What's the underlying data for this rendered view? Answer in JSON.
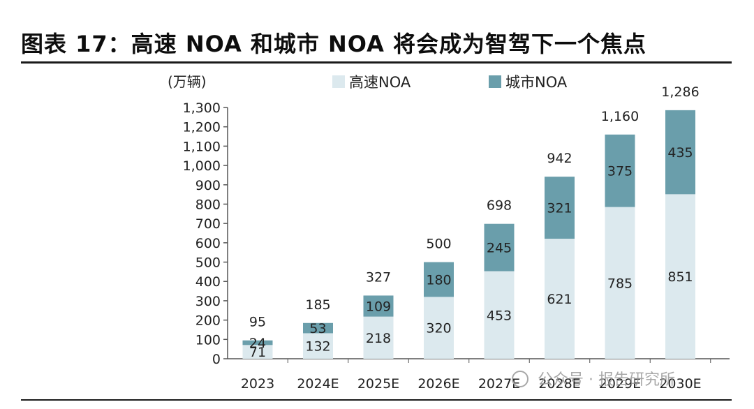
{
  "title": "图表 17：高速 NOA 和城市 NOA 将会成为智驾下一个焦点",
  "watermark": "公众号 · 报告研究所",
  "colors": {
    "highway": "#dce9ee",
    "city": "#6a9eab",
    "axis": "#555555"
  },
  "chart_data": {
    "type": "bar",
    "stacked": true,
    "unit_label": "(万辆)",
    "categories": [
      "2023",
      "2024E",
      "2025E",
      "2026E",
      "2027E",
      "2028E",
      "2029E",
      "2030E"
    ],
    "series": [
      {
        "name": "高速NOA",
        "values": [
          71,
          132,
          218,
          320,
          453,
          621,
          785,
          851
        ]
      },
      {
        "name": "城市NOA",
        "values": [
          24,
          53,
          109,
          180,
          245,
          321,
          375,
          435
        ]
      }
    ],
    "totals": [
      95,
      185,
      327,
      500,
      698,
      942,
      1160,
      1286
    ],
    "yticks": [
      "0",
      "100",
      "200",
      "300",
      "400",
      "500",
      "600",
      "700",
      "800",
      "900",
      "1,000",
      "1,100",
      "1,200",
      "1,300"
    ],
    "ylim": [
      0,
      1300
    ],
    "legend_position": "top",
    "grid": false
  }
}
